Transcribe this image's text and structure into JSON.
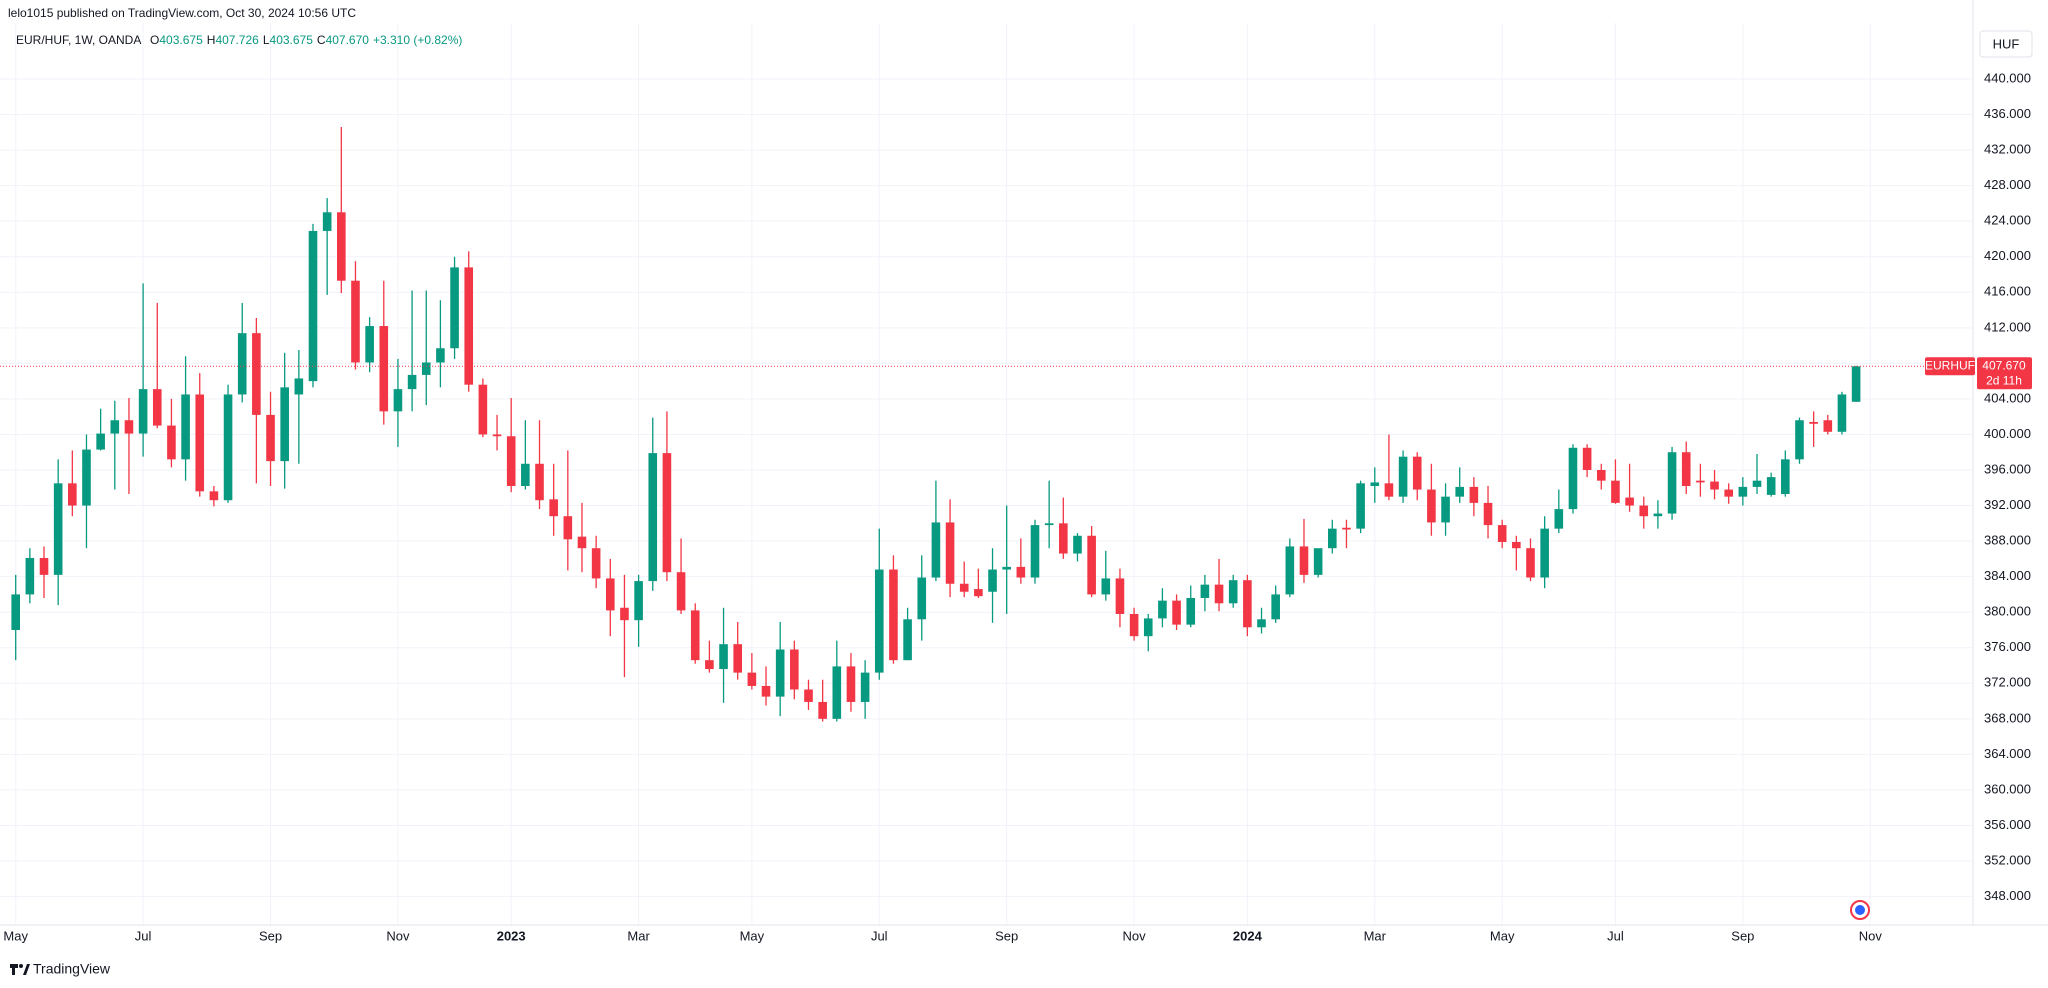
{
  "header": {
    "published": "lelo1015 published on TradingView.com, Oct 30, 2024 10:56 UTC",
    "symbol": "EUR/HUF, 1W, OANDA",
    "ohlc": [
      {
        "key": "O",
        "value": "403.675"
      },
      {
        "key": "H",
        "value": "407.726"
      },
      {
        "key": "L",
        "value": "403.675"
      },
      {
        "key": "C",
        "value": "407.670"
      }
    ],
    "change": "+3.310 (+0.82%)",
    "currency": "HUF",
    "footer": "TradingView"
  },
  "chart_data": {
    "type": "candlestick",
    "up_color": "#089981",
    "down_color": "#f23645",
    "grid": true,
    "grid_color": "#f0f3fa",
    "ylim": [
      344.8,
      446.3
    ],
    "yticks": [
      {
        "value": 348,
        "label": "348.000"
      },
      {
        "value": 352,
        "label": "352.000"
      },
      {
        "value": 356,
        "label": "356.000"
      },
      {
        "value": 360,
        "label": "360.000"
      },
      {
        "value": 364,
        "label": "364.000"
      },
      {
        "value": 368,
        "label": "368.000"
      },
      {
        "value": 372,
        "label": "372.000"
      },
      {
        "value": 376,
        "label": "376.000"
      },
      {
        "value": 380,
        "label": "380.000"
      },
      {
        "value": 384,
        "label": "384.000"
      },
      {
        "value": 388,
        "label": "388.000"
      },
      {
        "value": 392,
        "label": "392.000"
      },
      {
        "value": 396,
        "label": "396.000"
      },
      {
        "value": 400,
        "label": "400.000"
      },
      {
        "value": 404,
        "label": "404.000"
      },
      {
        "value": 408,
        "label": "408.000"
      },
      {
        "value": 412,
        "label": "412.000"
      },
      {
        "value": 416,
        "label": "416.000"
      },
      {
        "value": 420,
        "label": "420.000"
      },
      {
        "value": 424,
        "label": "424.000"
      },
      {
        "value": 428,
        "label": "428.000"
      },
      {
        "value": 432,
        "label": "432.000"
      },
      {
        "value": 436,
        "label": "436.000"
      },
      {
        "value": 440,
        "label": "440.000"
      }
    ],
    "categories": [
      "May",
      null,
      null,
      null,
      null,
      null,
      null,
      null,
      null,
      "Jul",
      null,
      null,
      null,
      null,
      null,
      null,
      null,
      null,
      "Sep",
      null,
      null,
      null,
      null,
      null,
      null,
      null,
      null,
      "Nov",
      null,
      null,
      null,
      null,
      null,
      null,
      null,
      "2023",
      null,
      null,
      null,
      null,
      null,
      null,
      null,
      null,
      "Mar",
      null,
      null,
      null,
      null,
      null,
      null,
      null,
      "May",
      null,
      null,
      null,
      null,
      null,
      null,
      null,
      null,
      "Jul",
      null,
      null,
      null,
      null,
      null,
      null,
      null,
      null,
      "Sep",
      null,
      null,
      null,
      null,
      null,
      null,
      null,
      null,
      "Nov",
      null,
      null,
      null,
      null,
      null,
      null,
      null,
      "2024",
      null,
      null,
      null,
      null,
      null,
      null,
      null,
      null,
      "Mar",
      null,
      null,
      null,
      null,
      null,
      null,
      null,
      null,
      "May",
      null,
      null,
      null,
      null,
      null,
      null,
      null,
      "Jul",
      null,
      null,
      null,
      null,
      null,
      null,
      null,
      null,
      "Sep",
      null,
      null,
      null,
      null,
      null,
      null,
      null,
      null,
      "Nov"
    ],
    "series": [
      {
        "name": "EURHUF",
        "open": [
          378.0,
          382.0,
          386.1,
          384.2,
          394.5,
          392.0,
          398.3,
          400.1,
          401.6,
          400.1,
          405.1,
          401.0,
          397.2,
          404.5,
          393.6,
          392.6,
          404.5,
          411.4,
          402.2,
          397.0,
          404.5,
          406.0,
          422.9,
          425.0,
          417.3,
          408.1,
          412.2,
          402.6,
          405.1,
          406.7,
          408.1,
          409.7,
          418.8,
          405.6,
          400.0,
          399.8,
          394.2,
          396.7,
          392.7,
          390.8,
          388.5,
          387.2,
          383.8,
          380.5,
          379.1,
          383.5,
          397.9,
          384.5,
          380.2,
          374.6,
          373.6,
          376.4,
          373.2,
          371.7,
          370.5,
          375.8,
          371.3,
          369.9,
          368.0,
          373.9,
          369.9,
          373.2,
          384.8,
          374.6,
          379.2,
          383.9,
          390.1,
          383.2,
          382.6,
          382.3,
          384.8,
          385.1,
          383.9,
          389.8,
          390.0,
          386.6,
          388.6,
          382.0,
          383.8,
          379.8,
          377.3,
          379.3,
          381.3,
          378.6,
          381.6,
          383.1,
          381.0,
          383.6,
          378.3,
          379.2,
          382.0,
          387.4,
          384.2,
          387.2,
          389.5,
          389.4,
          394.2,
          394.5,
          393.0,
          397.5,
          393.8,
          390.1,
          393.0,
          394.1,
          392.3,
          389.8,
          387.9,
          387.2,
          383.9,
          389.4,
          391.6,
          398.5,
          396.0,
          394.8,
          392.9,
          392.0,
          390.8,
          391.1,
          398.0,
          394.8,
          394.7,
          393.8,
          393.0,
          394.1,
          393.2,
          393.3,
          397.2,
          401.4,
          401.6,
          400.3,
          403.675,
          null
        ],
        "high": [
          384.2,
          387.2,
          387.4,
          397.2,
          398.2,
          400.0,
          402.9,
          403.8,
          404.1,
          417.0,
          414.8,
          404.0,
          408.8,
          406.9,
          394.2,
          405.6,
          414.8,
          413.1,
          404.8,
          409.2,
          409.5,
          423.7,
          426.6,
          434.6,
          419.5,
          413.2,
          417.3,
          408.5,
          416.2,
          416.2,
          415.1,
          420.0,
          420.6,
          406.3,
          402.2,
          404.1,
          401.6,
          401.6,
          396.7,
          398.2,
          392.3,
          388.6,
          386.0,
          384.2,
          384.2,
          401.9,
          402.6,
          388.3,
          381.0,
          376.8,
          380.5,
          378.9,
          375.4,
          373.9,
          378.9,
          376.8,
          372.4,
          372.4,
          376.8,
          375.4,
          374.6,
          389.4,
          386.4,
          380.5,
          386.4,
          394.8,
          392.7,
          385.7,
          384.9,
          387.2,
          392.0,
          388.3,
          390.4,
          394.8,
          392.9,
          388.9,
          389.7,
          386.9,
          384.9,
          380.5,
          379.8,
          382.7,
          382.0,
          383.0,
          384.2,
          386.0,
          384.2,
          384.2,
          380.5,
          383.0,
          388.3,
          390.5,
          386.9,
          390.4,
          390.4,
          394.8,
          396.3,
          400.0,
          398.2,
          398.0,
          396.7,
          394.5,
          396.3,
          395.2,
          394.2,
          390.4,
          388.6,
          388.3,
          390.8,
          393.8,
          398.9,
          398.9,
          396.7,
          397.2,
          396.7,
          393.0,
          392.6,
          398.6,
          399.2,
          396.7,
          396.0,
          394.5,
          395.2,
          397.8,
          395.7,
          398.2,
          401.9,
          402.6,
          402.2,
          404.8,
          407.726,
          null
        ],
        "low": [
          374.6,
          381.0,
          381.6,
          380.8,
          390.8,
          387.2,
          398.2,
          393.8,
          393.3,
          397.5,
          400.7,
          396.3,
          394.8,
          393.0,
          391.9,
          392.3,
          403.6,
          394.5,
          394.2,
          393.9,
          396.7,
          405.3,
          415.7,
          415.9,
          407.3,
          407.0,
          401.1,
          398.6,
          402.6,
          403.3,
          405.3,
          408.5,
          404.8,
          399.7,
          398.2,
          393.5,
          393.8,
          391.6,
          388.6,
          384.7,
          384.5,
          382.7,
          377.3,
          372.7,
          376.1,
          382.4,
          383.5,
          379.8,
          374.2,
          373.2,
          369.8,
          372.4,
          371.3,
          369.5,
          368.3,
          370.2,
          369.0,
          367.7,
          367.7,
          368.8,
          368.0,
          372.4,
          374.2,
          374.6,
          376.8,
          383.5,
          381.7,
          381.7,
          381.6,
          378.8,
          379.8,
          383.2,
          383.2,
          387.2,
          386.0,
          385.7,
          381.7,
          381.3,
          378.3,
          376.8,
          375.6,
          378.3,
          378.0,
          378.3,
          380.1,
          380.1,
          380.5,
          377.3,
          377.6,
          378.8,
          381.7,
          383.3,
          383.9,
          386.6,
          387.2,
          388.9,
          392.3,
          392.6,
          392.3,
          392.6,
          388.6,
          388.6,
          392.3,
          390.8,
          388.3,
          387.2,
          384.7,
          383.5,
          382.7,
          388.9,
          391.1,
          395.2,
          393.8,
          392.2,
          391.3,
          389.4,
          389.4,
          390.4,
          393.3,
          393.0,
          392.7,
          392.2,
          392.0,
          393.3,
          393.0,
          393.0,
          396.7,
          398.6,
          400.0,
          400.0,
          403.675,
          null
        ],
        "close": [
          382.0,
          386.1,
          384.2,
          394.5,
          392.0,
          398.3,
          400.1,
          401.6,
          400.1,
          405.1,
          401.0,
          397.2,
          404.5,
          393.6,
          392.6,
          404.5,
          411.4,
          402.2,
          397.0,
          405.3,
          406.3,
          422.9,
          425.0,
          417.3,
          408.1,
          412.2,
          402.6,
          405.1,
          406.7,
          408.1,
          409.7,
          418.8,
          405.6,
          400.0,
          399.8,
          394.2,
          396.7,
          392.6,
          390.8,
          388.2,
          387.2,
          383.8,
          380.2,
          379.1,
          383.5,
          397.9,
          384.5,
          380.2,
          374.6,
          373.6,
          376.4,
          373.2,
          371.7,
          370.5,
          375.8,
          371.3,
          369.9,
          368.0,
          373.9,
          369.9,
          373.2,
          384.8,
          374.6,
          379.2,
          383.9,
          390.1,
          383.2,
          382.3,
          381.8,
          384.8,
          385.1,
          383.9,
          389.8,
          390.0,
          386.6,
          388.6,
          382.0,
          383.8,
          379.8,
          377.3,
          379.3,
          381.3,
          378.6,
          381.6,
          383.1,
          381.0,
          383.6,
          378.3,
          379.2,
          382.0,
          387.4,
          384.2,
          387.2,
          389.4,
          389.3,
          394.5,
          394.6,
          393.0,
          397.5,
          393.8,
          390.1,
          393.0,
          394.1,
          392.3,
          389.8,
          387.9,
          387.2,
          383.9,
          389.4,
          391.6,
          398.5,
          396.0,
          394.8,
          392.3,
          392.0,
          390.8,
          391.1,
          398.0,
          394.2,
          394.6,
          393.8,
          393.0,
          394.1,
          394.8,
          395.2,
          397.2,
          401.6,
          401.2,
          400.3,
          404.5,
          407.67,
          null
        ]
      }
    ],
    "last_price": {
      "label": "407.670",
      "countdown": "2d 11h"
    }
  }
}
